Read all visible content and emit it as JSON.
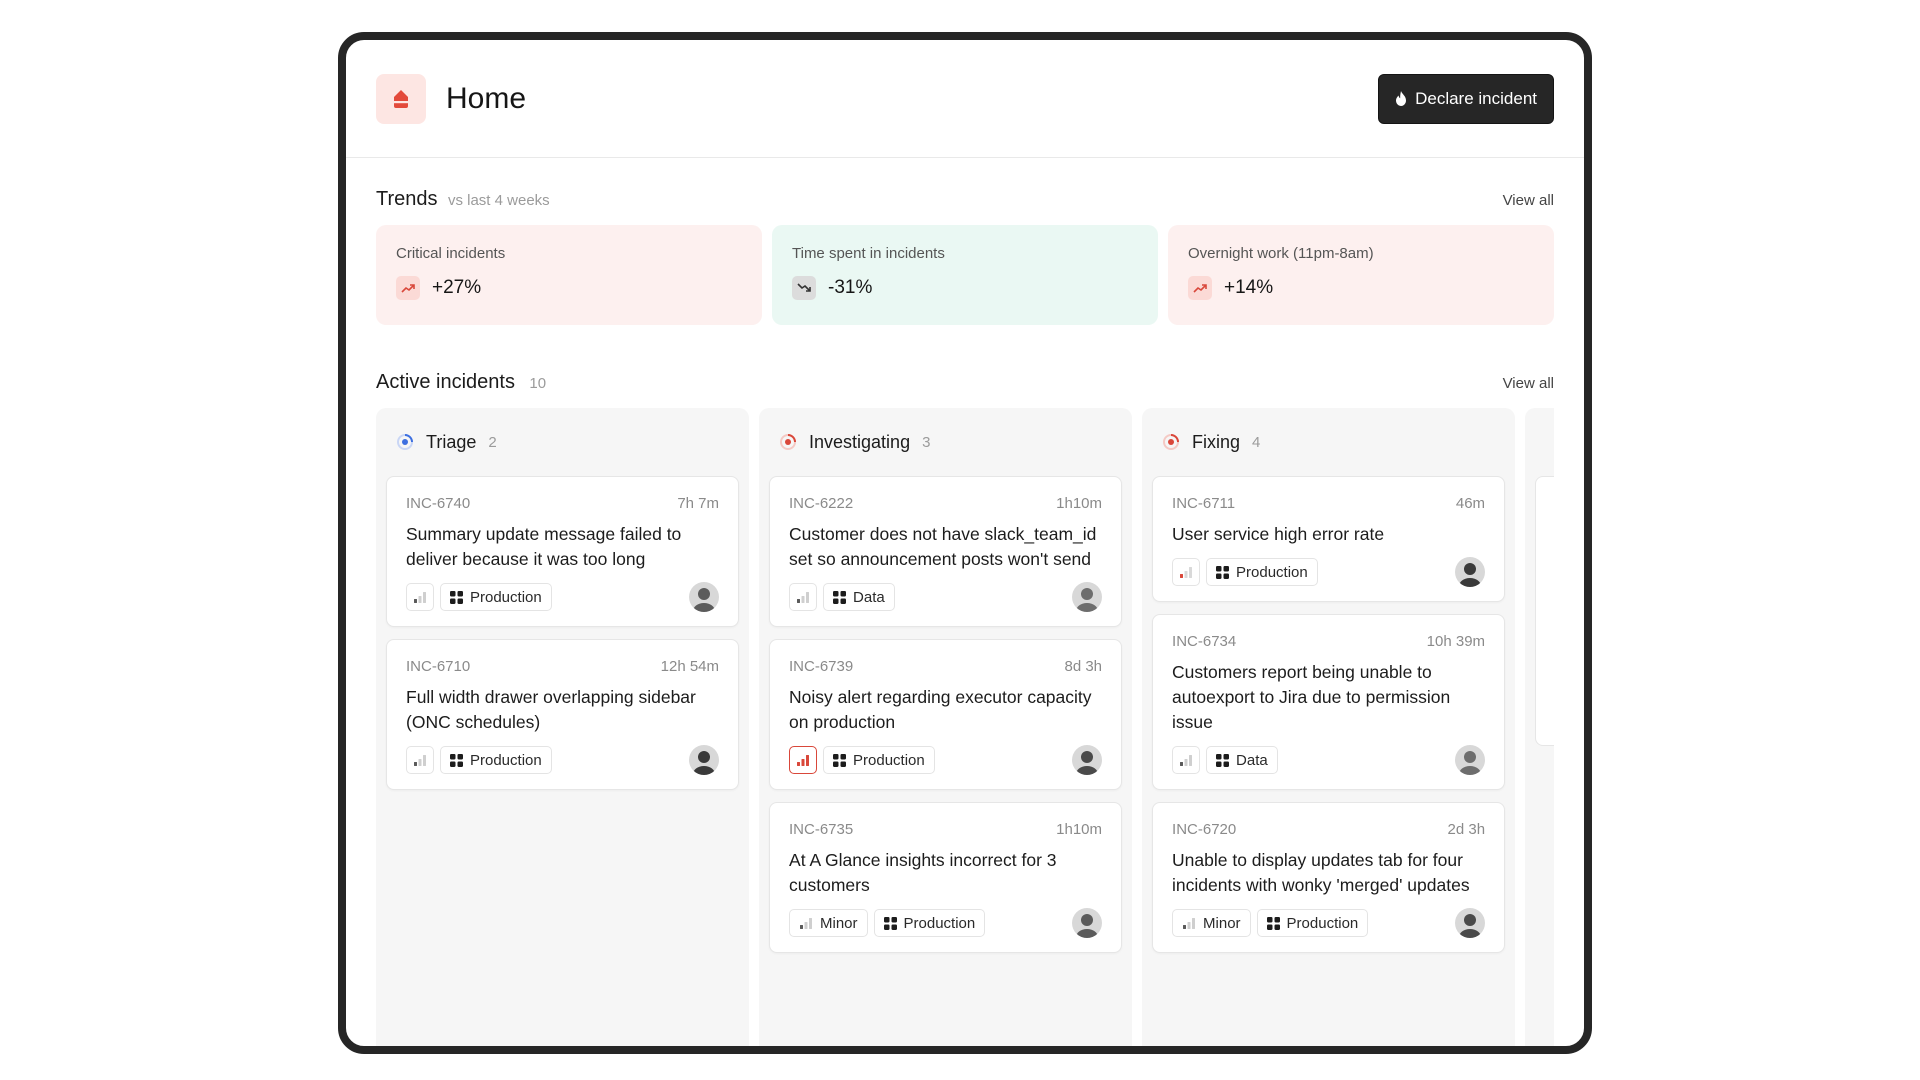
{
  "header": {
    "title": "Home",
    "declare_label": "Declare incident"
  },
  "trends": {
    "title": "Trends",
    "subtitle": "vs last 4 weeks",
    "view_all": "View all",
    "cards": [
      {
        "label": "Critical incidents",
        "value": "+27%",
        "direction": "up",
        "tone": "red"
      },
      {
        "label": "Time spent in incidents",
        "value": "-31%",
        "direction": "down",
        "tone": "green"
      },
      {
        "label": "Overnight work (11pm-8am)",
        "value": "+14%",
        "direction": "up",
        "tone": "red"
      }
    ]
  },
  "active": {
    "title": "Active incidents",
    "count": "10",
    "view_all": "View all",
    "columns": [
      {
        "name": "Triage",
        "count": "2",
        "status": "triage",
        "cards": [
          {
            "id": "INC-6740",
            "duration": "7h 7m",
            "title": "Summary update message failed to deliver because it was too long",
            "severity": "low",
            "tags": [
              "Production"
            ]
          },
          {
            "id": "INC-6710",
            "duration": "12h 54m",
            "title": "Full width drawer overlapping sidebar (ONC schedules)",
            "severity": "low",
            "tags": [
              "Production"
            ]
          }
        ]
      },
      {
        "name": "Investigating",
        "count": "3",
        "status": "active",
        "cards": [
          {
            "id": "INC-6222",
            "duration": "1h10m",
            "title": "Customer does not have slack_team_id set so announcement posts won't send",
            "severity": "low",
            "tags": [
              "Data"
            ]
          },
          {
            "id": "INC-6739",
            "duration": "8d 3h",
            "title": "Noisy alert regarding executor capacity on production",
            "severity": "critical",
            "tags": [
              "Production"
            ]
          },
          {
            "id": "INC-6735",
            "duration": "1h10m",
            "title": "At A Glance insights incorrect for 3 customers",
            "severity": "low",
            "severity_label": "Minor",
            "tags": [
              "Production"
            ]
          }
        ]
      },
      {
        "name": "Fixing",
        "count": "4",
        "status": "active",
        "cards": [
          {
            "id": "INC-6711",
            "duration": "46m",
            "title": "User service high error rate",
            "severity": "major",
            "tags": [
              "Production"
            ]
          },
          {
            "id": "INC-6734",
            "duration": "10h 39m",
            "title": "Customers report being unable to autoexport to Jira due to permission issue",
            "severity": "low",
            "tags": [
              "Data"
            ]
          },
          {
            "id": "INC-6720",
            "duration": "2d 3h",
            "title": "Unable to display updates tab for four incidents with wonky 'merged' updates",
            "severity": "low",
            "severity_label": "Minor",
            "tags": [
              "Production"
            ]
          }
        ]
      }
    ]
  },
  "colors": {
    "brand": "#e34a3b",
    "dark_button": "#262626",
    "trend_red_bg": "#fdf0ef",
    "trend_green_bg": "#eaf8f3",
    "triage_blue": "#3d6fe0",
    "active_red": "#d9473a"
  }
}
